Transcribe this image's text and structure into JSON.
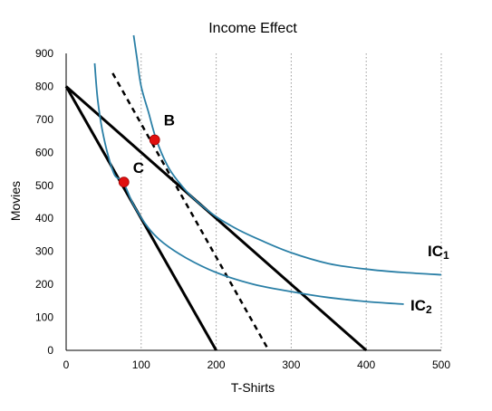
{
  "chart_data": {
    "type": "line",
    "title": "Income Effect",
    "xlabel": "T-Shirts",
    "ylabel": "Movies",
    "xlim": [
      0,
      500
    ],
    "ylim": [
      0,
      900
    ],
    "xticks": [
      "0",
      "100",
      "200",
      "300",
      "400",
      "500"
    ],
    "yticks": [
      "0",
      "100",
      "200",
      "300",
      "400",
      "500",
      "600",
      "700",
      "800",
      "900"
    ],
    "grid": "vertical-dotted",
    "budget_lines": [
      {
        "id": "original",
        "x": [
          0,
          400
        ],
        "y": [
          800,
          0
        ],
        "style": "solid"
      },
      {
        "id": "new",
        "x": [
          0,
          200
        ],
        "y": [
          800,
          0
        ],
        "style": "solid"
      },
      {
        "id": "compensated",
        "x": [
          62,
          270
        ],
        "y": [
          840,
          0
        ],
        "style": "dashed"
      }
    ],
    "indifference_curves": [
      {
        "label_main": "IC",
        "label_sub": "1",
        "x": [
          90,
          95,
          100,
          110,
          120,
          135,
          150,
          170,
          200,
          230,
          260,
          300,
          350,
          400,
          450,
          500
        ],
        "y": [
          955,
          875,
          800,
          720,
          640,
          560,
          510,
          460,
          405,
          365,
          333,
          296,
          263,
          246,
          236,
          229
        ]
      },
      {
        "label_main": "IC",
        "label_sub": "2",
        "x": [
          38,
          42,
          48,
          56,
          65,
          76,
          90,
          110,
          130,
          160,
          200,
          250,
          300,
          350,
          400,
          450
        ],
        "y": [
          870,
          760,
          670,
          590,
          530,
          510,
          440,
          370,
          325,
          280,
          236,
          200,
          178,
          160,
          148,
          140
        ]
      }
    ],
    "points": [
      {
        "label": "B",
        "x": 118,
        "y": 638
      },
      {
        "label": "C",
        "x": 77,
        "y": 510
      }
    ],
    "colors": {
      "budget": "#000000",
      "curve": "#2a7fa6",
      "point": "#e01010",
      "grid": "#999999"
    }
  }
}
